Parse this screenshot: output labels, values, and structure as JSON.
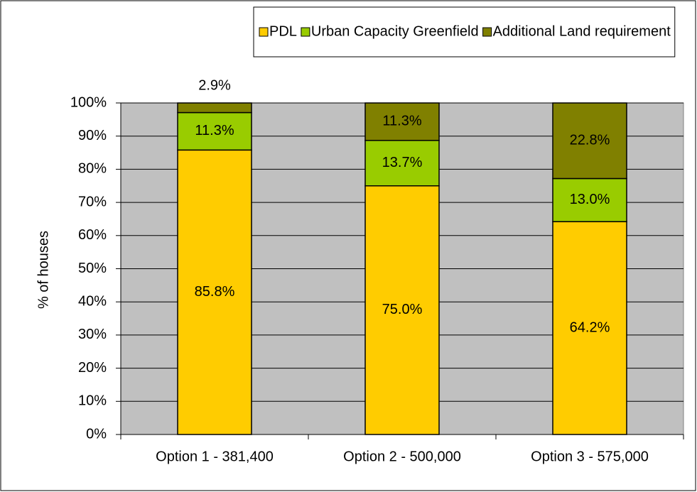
{
  "chart_data": {
    "type": "stacked_bar",
    "categories": [
      "Option 1 - 381,400",
      "Option 2 - 500,000",
      "Option 3 - 575,000"
    ],
    "series": [
      {
        "name": "PDL",
        "color": "#ffcc00",
        "values": [
          85.8,
          75.0,
          64.2
        ],
        "value_labels": [
          "85.8%",
          "75.0%",
          "64.2%"
        ]
      },
      {
        "name": "Urban Capacity Greenfield",
        "color": "#99cc00",
        "values": [
          11.3,
          13.7,
          13.0
        ],
        "value_labels": [
          "11.3%",
          "13.7%",
          "13.0%"
        ]
      },
      {
        "name": "Additional Land requirement",
        "color": "#808000",
        "values": [
          2.9,
          11.3,
          22.8
        ],
        "value_labels": [
          "2.9%",
          "11.3%",
          "22.8%"
        ]
      }
    ],
    "y_label": "% of houses",
    "ylim": [
      0,
      100
    ],
    "yticks": [
      {
        "value": 0,
        "label": "0%"
      },
      {
        "value": 10,
        "label": "10%"
      },
      {
        "value": 20,
        "label": "20%"
      },
      {
        "value": 30,
        "label": "30%"
      },
      {
        "value": 40,
        "label": "40%"
      },
      {
        "value": 50,
        "label": "50%"
      },
      {
        "value": 60,
        "label": "60%"
      },
      {
        "value": 70,
        "label": "70%"
      },
      {
        "value": 80,
        "label": "80%"
      },
      {
        "value": 90,
        "label": "90%"
      },
      {
        "value": 100,
        "label": "100%"
      }
    ],
    "grid": true,
    "legend": "top",
    "plot_background": "#c0c0c0"
  }
}
